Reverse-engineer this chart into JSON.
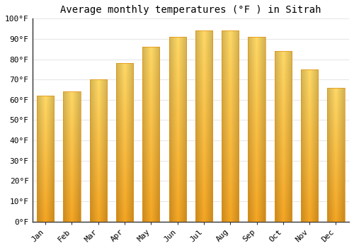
{
  "title": "Average monthly temperatures (°F ) in Sitrah",
  "months": [
    "Jan",
    "Feb",
    "Mar",
    "Apr",
    "May",
    "Jun",
    "Jul",
    "Aug",
    "Sep",
    "Oct",
    "Nov",
    "Dec"
  ],
  "values": [
    62,
    64,
    70,
    78,
    86,
    91,
    94,
    94,
    91,
    84,
    75,
    66
  ],
  "bar_color_bottom": "#F5A623",
  "bar_color_top": "#FFD966",
  "bar_color_edge": "#E09010",
  "ylim": [
    0,
    100
  ],
  "yticks": [
    0,
    10,
    20,
    30,
    40,
    50,
    60,
    70,
    80,
    90,
    100
  ],
  "ytick_labels": [
    "0°F",
    "10°F",
    "20°F",
    "30°F",
    "40°F",
    "50°F",
    "60°F",
    "70°F",
    "80°F",
    "90°F",
    "100°F"
  ],
  "bg_color": "#ffffff",
  "grid_color": "#e8e8e8",
  "title_fontsize": 10,
  "tick_fontsize": 8,
  "font_family": "monospace"
}
